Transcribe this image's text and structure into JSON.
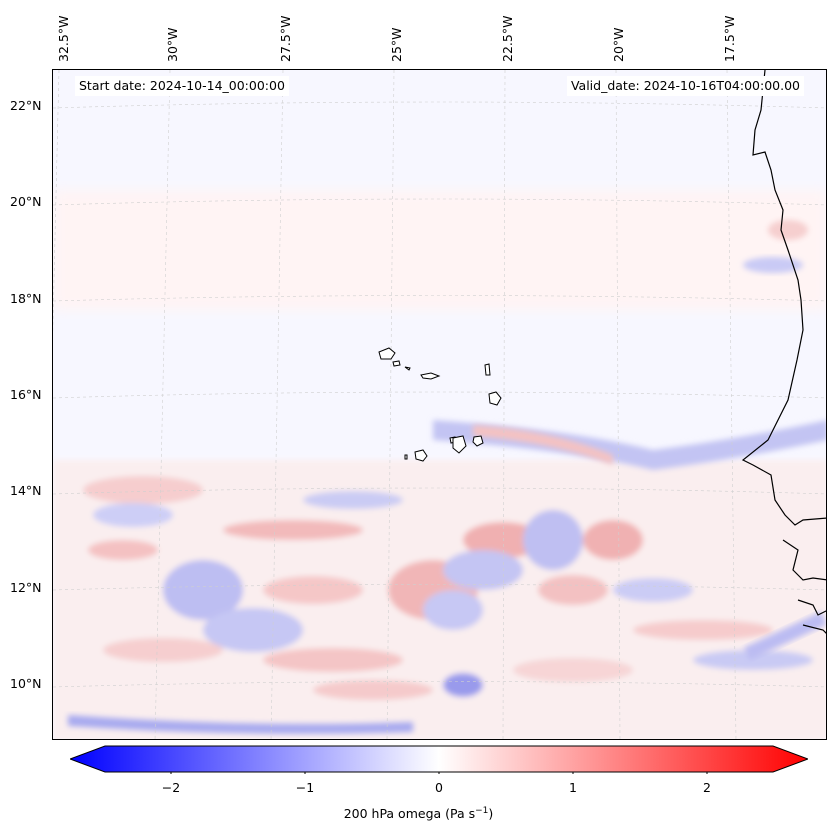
{
  "header": {
    "start_date": "Start date: 2024-10-14_00:00:00",
    "valid_date": "Valid_date: 2024-10-16T04:00:00.00"
  },
  "axes": {
    "lon_labels": [
      "32.5°W",
      "30°W",
      "27.5°W",
      "25°W",
      "22.5°W",
      "20°W",
      "17.5°W"
    ],
    "lat_labels": [
      "22°N",
      "20°N",
      "18°N",
      "16°N",
      "14°N",
      "12°N",
      "10°N"
    ]
  },
  "colorbar": {
    "ticks": [
      "−2",
      "−1",
      "0",
      "1",
      "2"
    ],
    "label_main": "200 hPa omega (Pa s",
    "label_exp": "−1",
    "label_close": ")",
    "min_color": "#0000ff",
    "mid_color": "#ffffff",
    "max_color": "#ff0000"
  },
  "colors": {
    "coastline": "#000000",
    "background": "#f7f7ff",
    "gridline": "#bbbbbb"
  }
}
